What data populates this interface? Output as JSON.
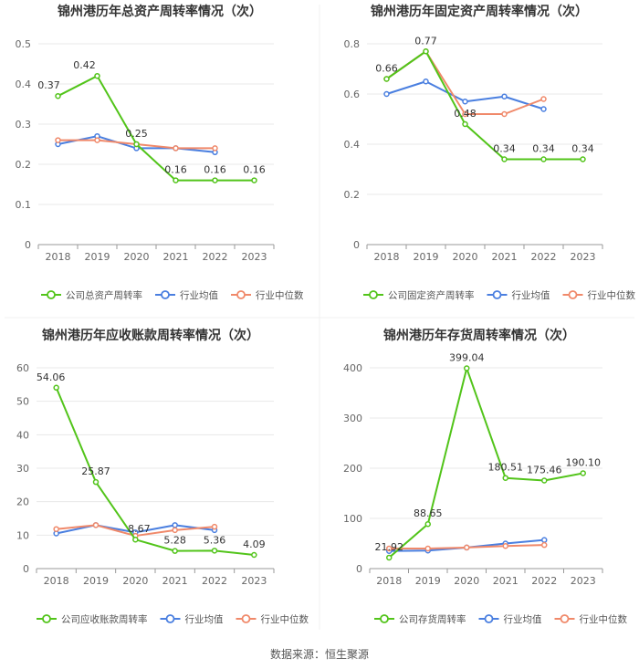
{
  "colors": {
    "company": "#52c41a",
    "industry_avg": "#4a7fe0",
    "industry_median": "#f0896a",
    "grid": "#e8e8e8",
    "axis_text": "#666666",
    "title": "#333333"
  },
  "source_label": "数据来源：恒生聚源",
  "chart_data": [
    {
      "type": "line",
      "title": "锦州港历年总资产周转率情况（次）",
      "categories": [
        "2018",
        "2019",
        "2020",
        "2021",
        "2022",
        "2023"
      ],
      "ylim": [
        0,
        0.5
      ],
      "yticks": [
        "0",
        "0.1",
        "0.2",
        "0.3",
        "0.4",
        "0.5"
      ],
      "grid": true,
      "legend": "bottom",
      "series": [
        {
          "name": "公司总资产周转率",
          "role": "company",
          "values": [
            0.37,
            0.42,
            0.25,
            0.16,
            0.16,
            0.16
          ],
          "labels": [
            "0.37",
            "0.42",
            "0.25",
            "0.16",
            "0.16",
            "0.16"
          ]
        },
        {
          "name": "行业均值",
          "role": "industry_avg",
          "values": [
            0.25,
            0.27,
            0.24,
            0.24,
            0.23,
            null
          ]
        },
        {
          "name": "行业中位数",
          "role": "industry_median",
          "values": [
            0.26,
            0.26,
            0.25,
            0.24,
            0.24,
            null
          ]
        }
      ]
    },
    {
      "type": "line",
      "title": "锦州港历年固定资产周转率情况（次）",
      "categories": [
        "2018",
        "2019",
        "2020",
        "2021",
        "2022",
        "2023"
      ],
      "ylim": [
        0,
        0.8
      ],
      "yticks": [
        "0",
        "0.2",
        "0.4",
        "0.6",
        "0.8"
      ],
      "grid": true,
      "legend": "bottom",
      "series": [
        {
          "name": "公司固定资产周转率",
          "role": "company",
          "values": [
            0.66,
            0.77,
            0.48,
            0.34,
            0.34,
            0.34
          ],
          "labels": [
            "0.66",
            "0.77",
            "0.48",
            "0.34",
            "0.34",
            "0.34"
          ]
        },
        {
          "name": "行业均值",
          "role": "industry_avg",
          "values": [
            0.6,
            0.65,
            0.57,
            0.59,
            0.54,
            null
          ]
        },
        {
          "name": "行业中位数",
          "role": "industry_median",
          "values": [
            0.66,
            0.77,
            0.52,
            0.52,
            0.58,
            null
          ]
        }
      ]
    },
    {
      "type": "line",
      "title": "锦州港历年应收账款周转率情况（次）",
      "categories": [
        "2018",
        "2019",
        "2020",
        "2021",
        "2022",
        "2023"
      ],
      "ylim": [
        0,
        60
      ],
      "yticks": [
        "0",
        "10",
        "20",
        "30",
        "40",
        "50",
        "60"
      ],
      "grid": true,
      "legend": "bottom",
      "series": [
        {
          "name": "公司应收账款周转率",
          "role": "company",
          "values": [
            54.06,
            25.87,
            8.67,
            5.28,
            5.36,
            4.09
          ],
          "labels": [
            "54.06",
            "25.87",
            "8.67",
            "5.28",
            "5.36",
            "4.09"
          ]
        },
        {
          "name": "行业均值",
          "role": "industry_avg",
          "values": [
            10.5,
            13,
            10.8,
            13,
            11.5,
            null
          ]
        },
        {
          "name": "行业中位数",
          "role": "industry_median",
          "values": [
            11.8,
            13,
            9.8,
            11.5,
            12.5,
            null
          ]
        }
      ]
    },
    {
      "type": "line",
      "title": "锦州港历年存货周转率情况（次）",
      "categories": [
        "2018",
        "2019",
        "2020",
        "2021",
        "2022",
        "2023"
      ],
      "ylim": [
        0,
        400
      ],
      "yticks": [
        "0",
        "100",
        "200",
        "300",
        "400"
      ],
      "grid": true,
      "legend": "bottom",
      "series": [
        {
          "name": "公司存货周转率",
          "role": "company",
          "values": [
            21.92,
            88.65,
            399.04,
            180.51,
            175.46,
            190.1
          ],
          "labels": [
            "21.92",
            "88.65",
            "399.04",
            "180.51",
            "175.46",
            "190.10"
          ]
        },
        {
          "name": "行业均值",
          "role": "industry_avg",
          "values": [
            35,
            36,
            42,
            50,
            57,
            null
          ]
        },
        {
          "name": "行业中位数",
          "role": "industry_median",
          "values": [
            40,
            40,
            42,
            45,
            47,
            null
          ]
        }
      ]
    }
  ]
}
